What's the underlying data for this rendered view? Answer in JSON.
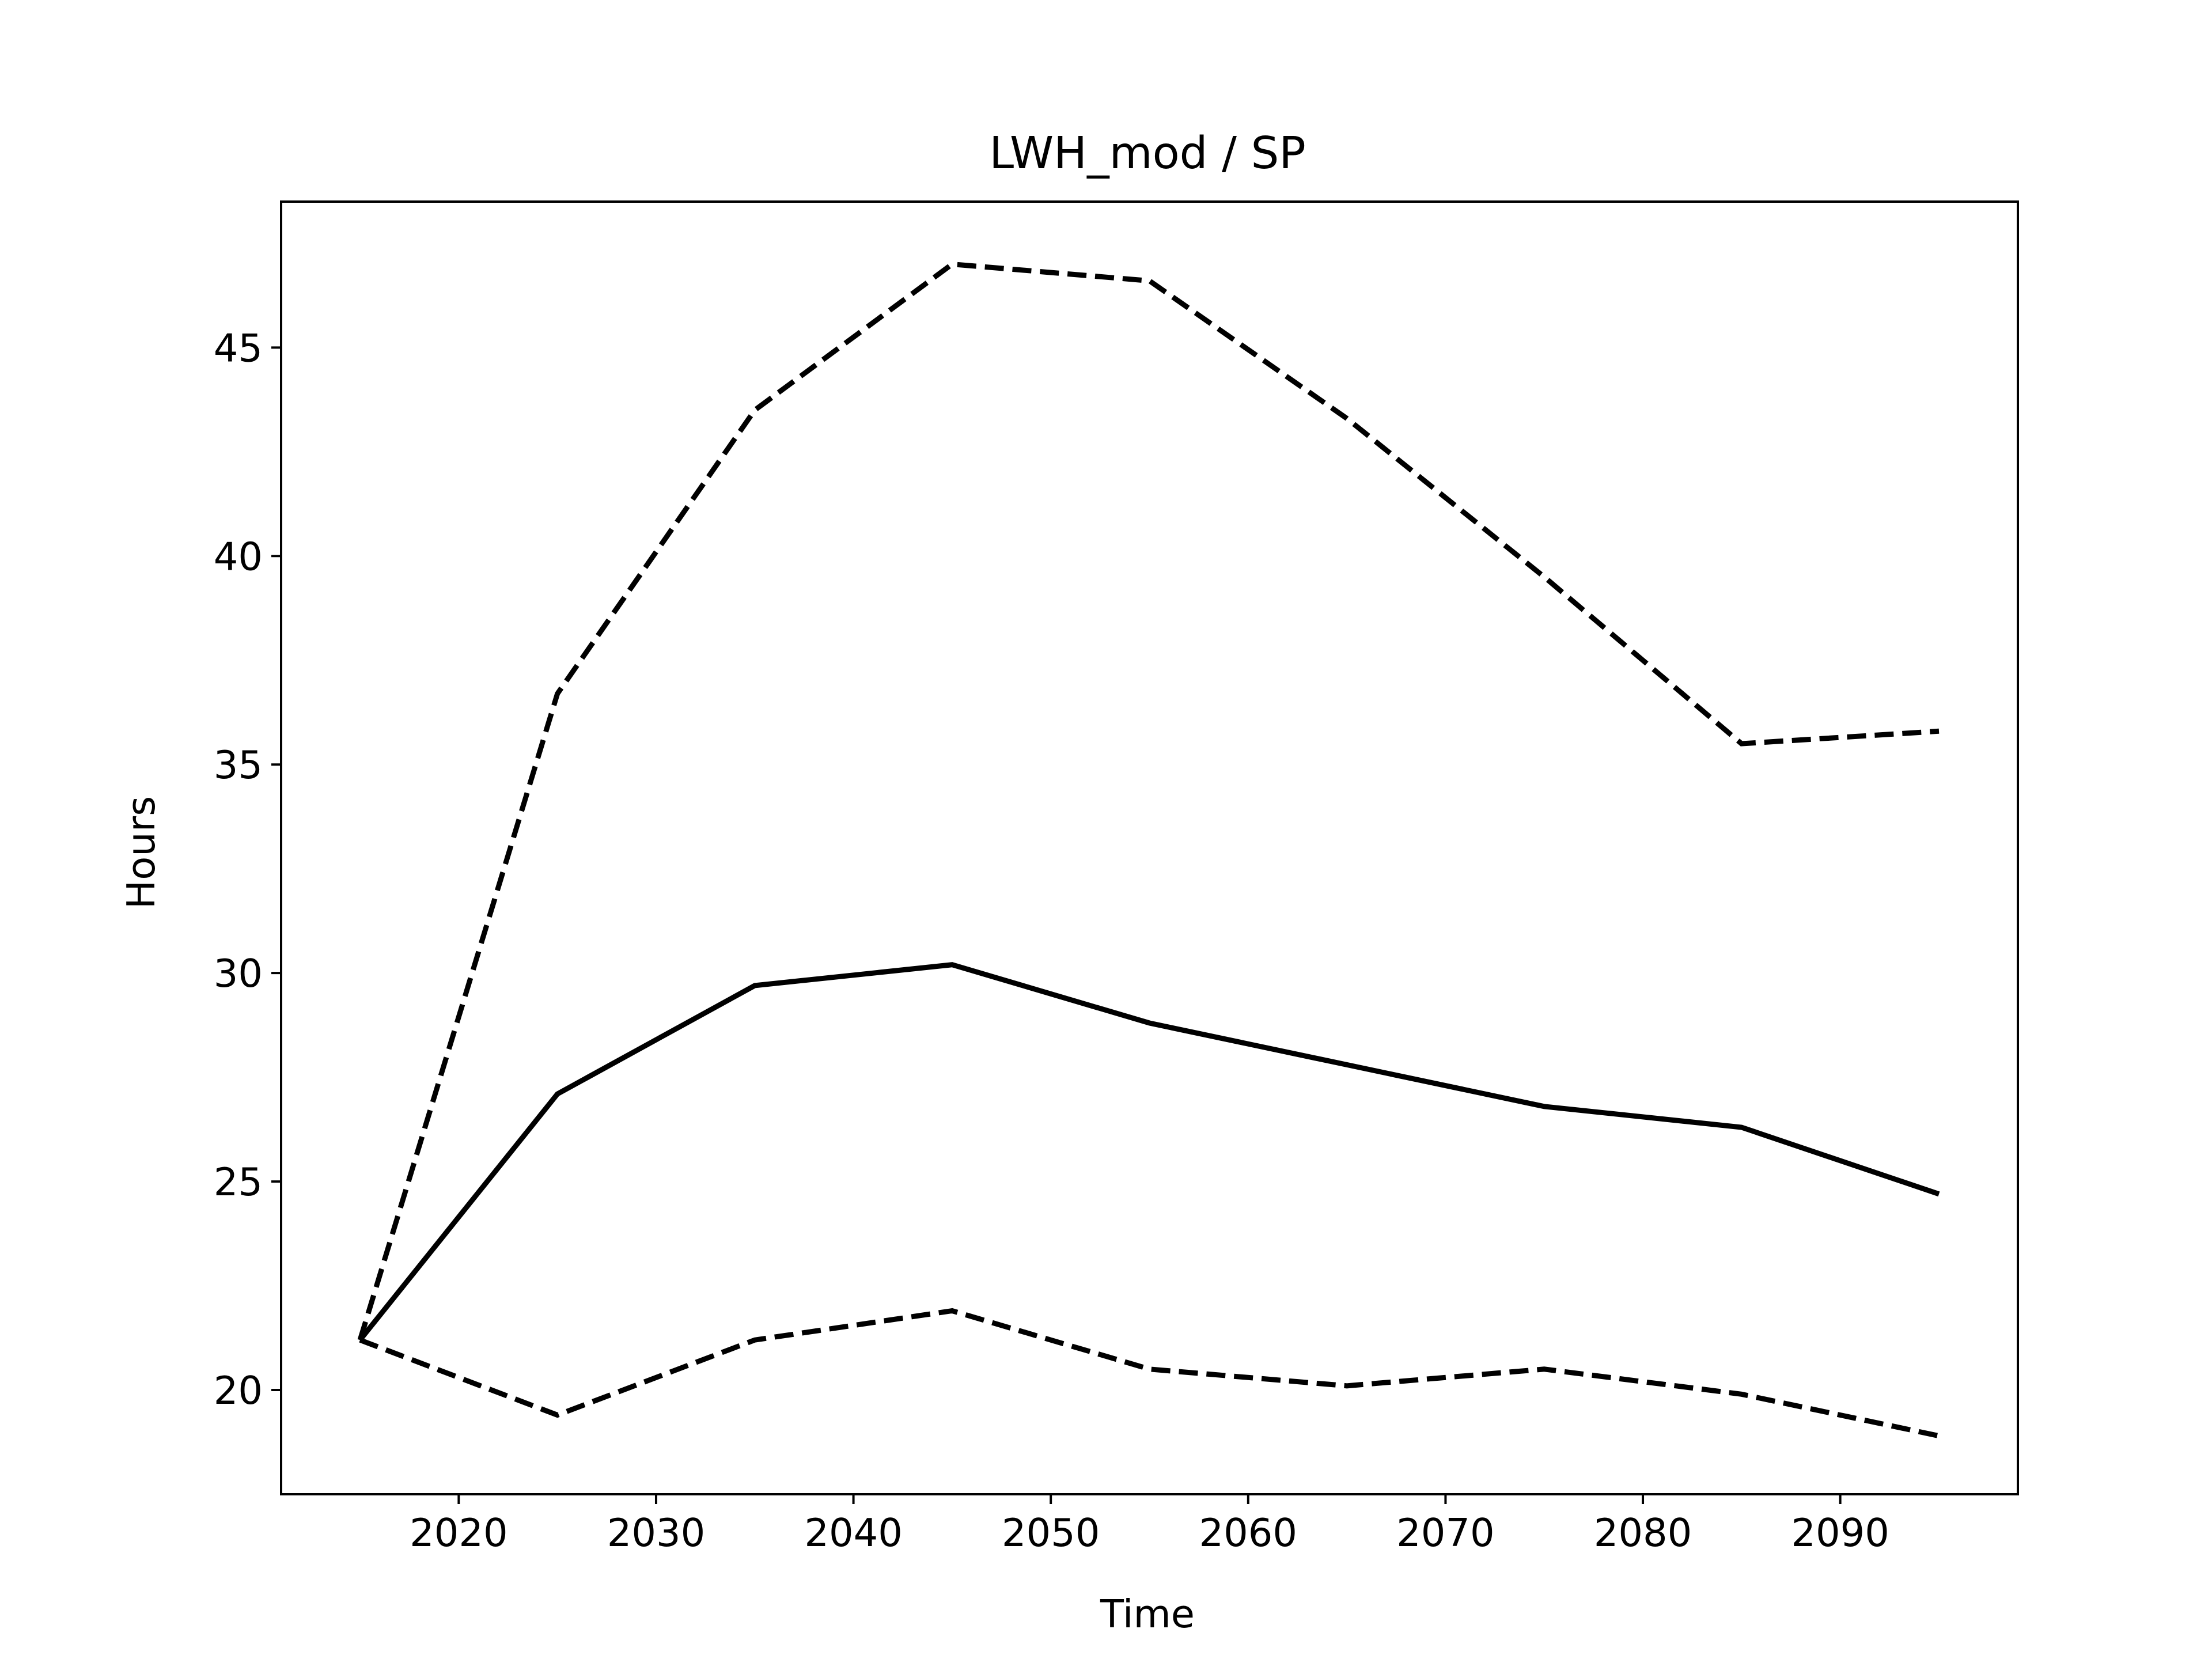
{
  "chart_data": {
    "type": "line",
    "title": "LWH_mod / SP",
    "xlabel": "Time",
    "ylabel": "Hours",
    "xlim": [
      2011,
      2099
    ],
    "ylim": [
      17.5,
      48.5
    ],
    "x_ticks": [
      2020,
      2030,
      2040,
      2050,
      2060,
      2070,
      2080,
      2090
    ],
    "y_ticks": [
      20,
      25,
      30,
      35,
      40,
      45
    ],
    "grid": false,
    "x": [
      2015,
      2025,
      2035,
      2045,
      2055,
      2065,
      2075,
      2085,
      2095
    ],
    "series": [
      {
        "style": "dashed",
        "color": "#000000",
        "values": [
          21.2,
          36.7,
          43.5,
          47.0,
          46.6,
          43.3,
          39.5,
          35.5,
          35.8
        ]
      },
      {
        "style": "solid",
        "color": "#000000",
        "values": [
          21.2,
          27.1,
          29.7,
          30.2,
          28.8,
          27.8,
          26.8,
          26.3,
          24.7
        ]
      },
      {
        "style": "dashed",
        "color": "#000000",
        "values": [
          21.2,
          19.4,
          21.2,
          21.9,
          20.5,
          20.1,
          20.5,
          19.9,
          18.9
        ]
      }
    ]
  }
}
